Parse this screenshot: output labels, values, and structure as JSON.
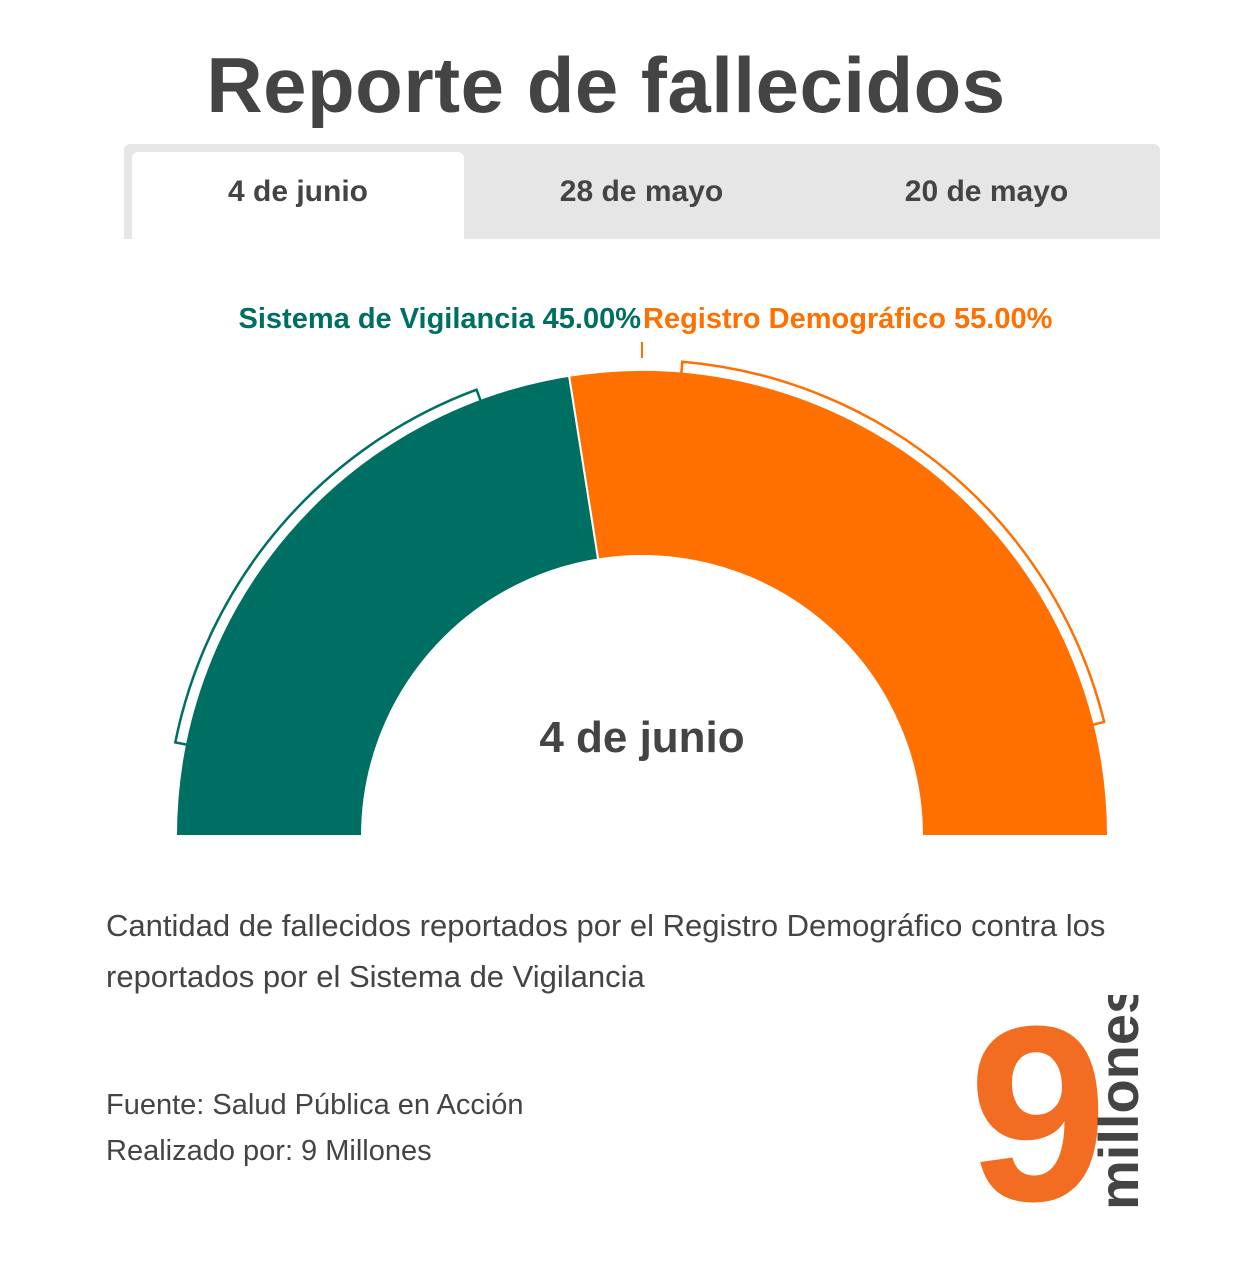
{
  "title": "Reporte de fallecidos",
  "tabs": [
    {
      "label": "4 de junio",
      "active": true
    },
    {
      "label": "28 de mayo",
      "active": false
    },
    {
      "label": "20 de mayo",
      "active": false
    }
  ],
  "colors": {
    "vigilancia": "#006f63",
    "registro": "#ff7001",
    "text": "#444444",
    "tab_bg": "#e6e6e6"
  },
  "chart_data": {
    "type": "pie",
    "variant": "semicircle",
    "center_label": "4 de junio",
    "series": [
      {
        "name": "Sistema de Vigilancia",
        "value": 45.0,
        "label": "45.00%"
      },
      {
        "name": "Registro Demográfico",
        "value": 55.0,
        "label": "55.00%"
      }
    ]
  },
  "caption": "Cantidad de fallecidos reportados por el Registro Demográfico contra los reportados por el Sistema de Vigilancia",
  "credits": {
    "source": "Fuente: Salud Pública en Acción",
    "author": "Realizado por: 9 Millones"
  },
  "logo": {
    "digit": "9",
    "word": "millones"
  }
}
